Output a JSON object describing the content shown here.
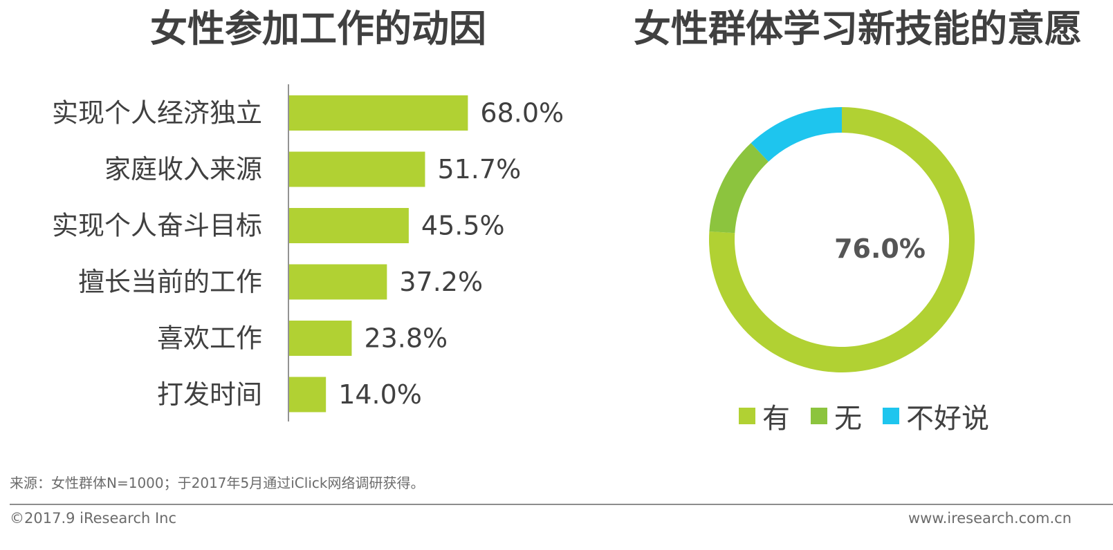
{
  "colors": {
    "bar": "#b1d133",
    "yes": "#b1d133",
    "no": "#8cc43e",
    "unsure": "#1ec5ee",
    "text": "#404040",
    "muted": "#6b6b6b"
  },
  "chart_data": [
    {
      "type": "bar",
      "orientation": "horizontal",
      "title": "女性参加工作的动因",
      "categories": [
        "实现个人经济独立",
        "家庭收入来源",
        "实现个人奋斗目标",
        "擅长当前的工作",
        "喜欢工作",
        "打发时间"
      ],
      "values": [
        68.0,
        51.7,
        45.5,
        37.2,
        23.8,
        14.0
      ],
      "value_labels": [
        "68.0%",
        "51.7%",
        "45.5%",
        "37.2%",
        "23.8%",
        "14.0%"
      ],
      "xlim": [
        0,
        100
      ],
      "grid": false
    },
    {
      "type": "pie",
      "style": "donut",
      "title": "女性群体学习新技能的意愿",
      "categories": [
        "有",
        "无",
        "不好说"
      ],
      "values": [
        76.0,
        12.0,
        12.0
      ],
      "center_label": "76.0%",
      "legend": [
        "有",
        "无",
        "不好说"
      ],
      "legend_position": "bottom"
    }
  ],
  "footer": {
    "source": "来源：女性群体N=1000；于2017年5月通过iClick网络调研获得。",
    "copyright": "©2017.9 iResearch Inc",
    "website": "www.iresearch.com.cn"
  }
}
